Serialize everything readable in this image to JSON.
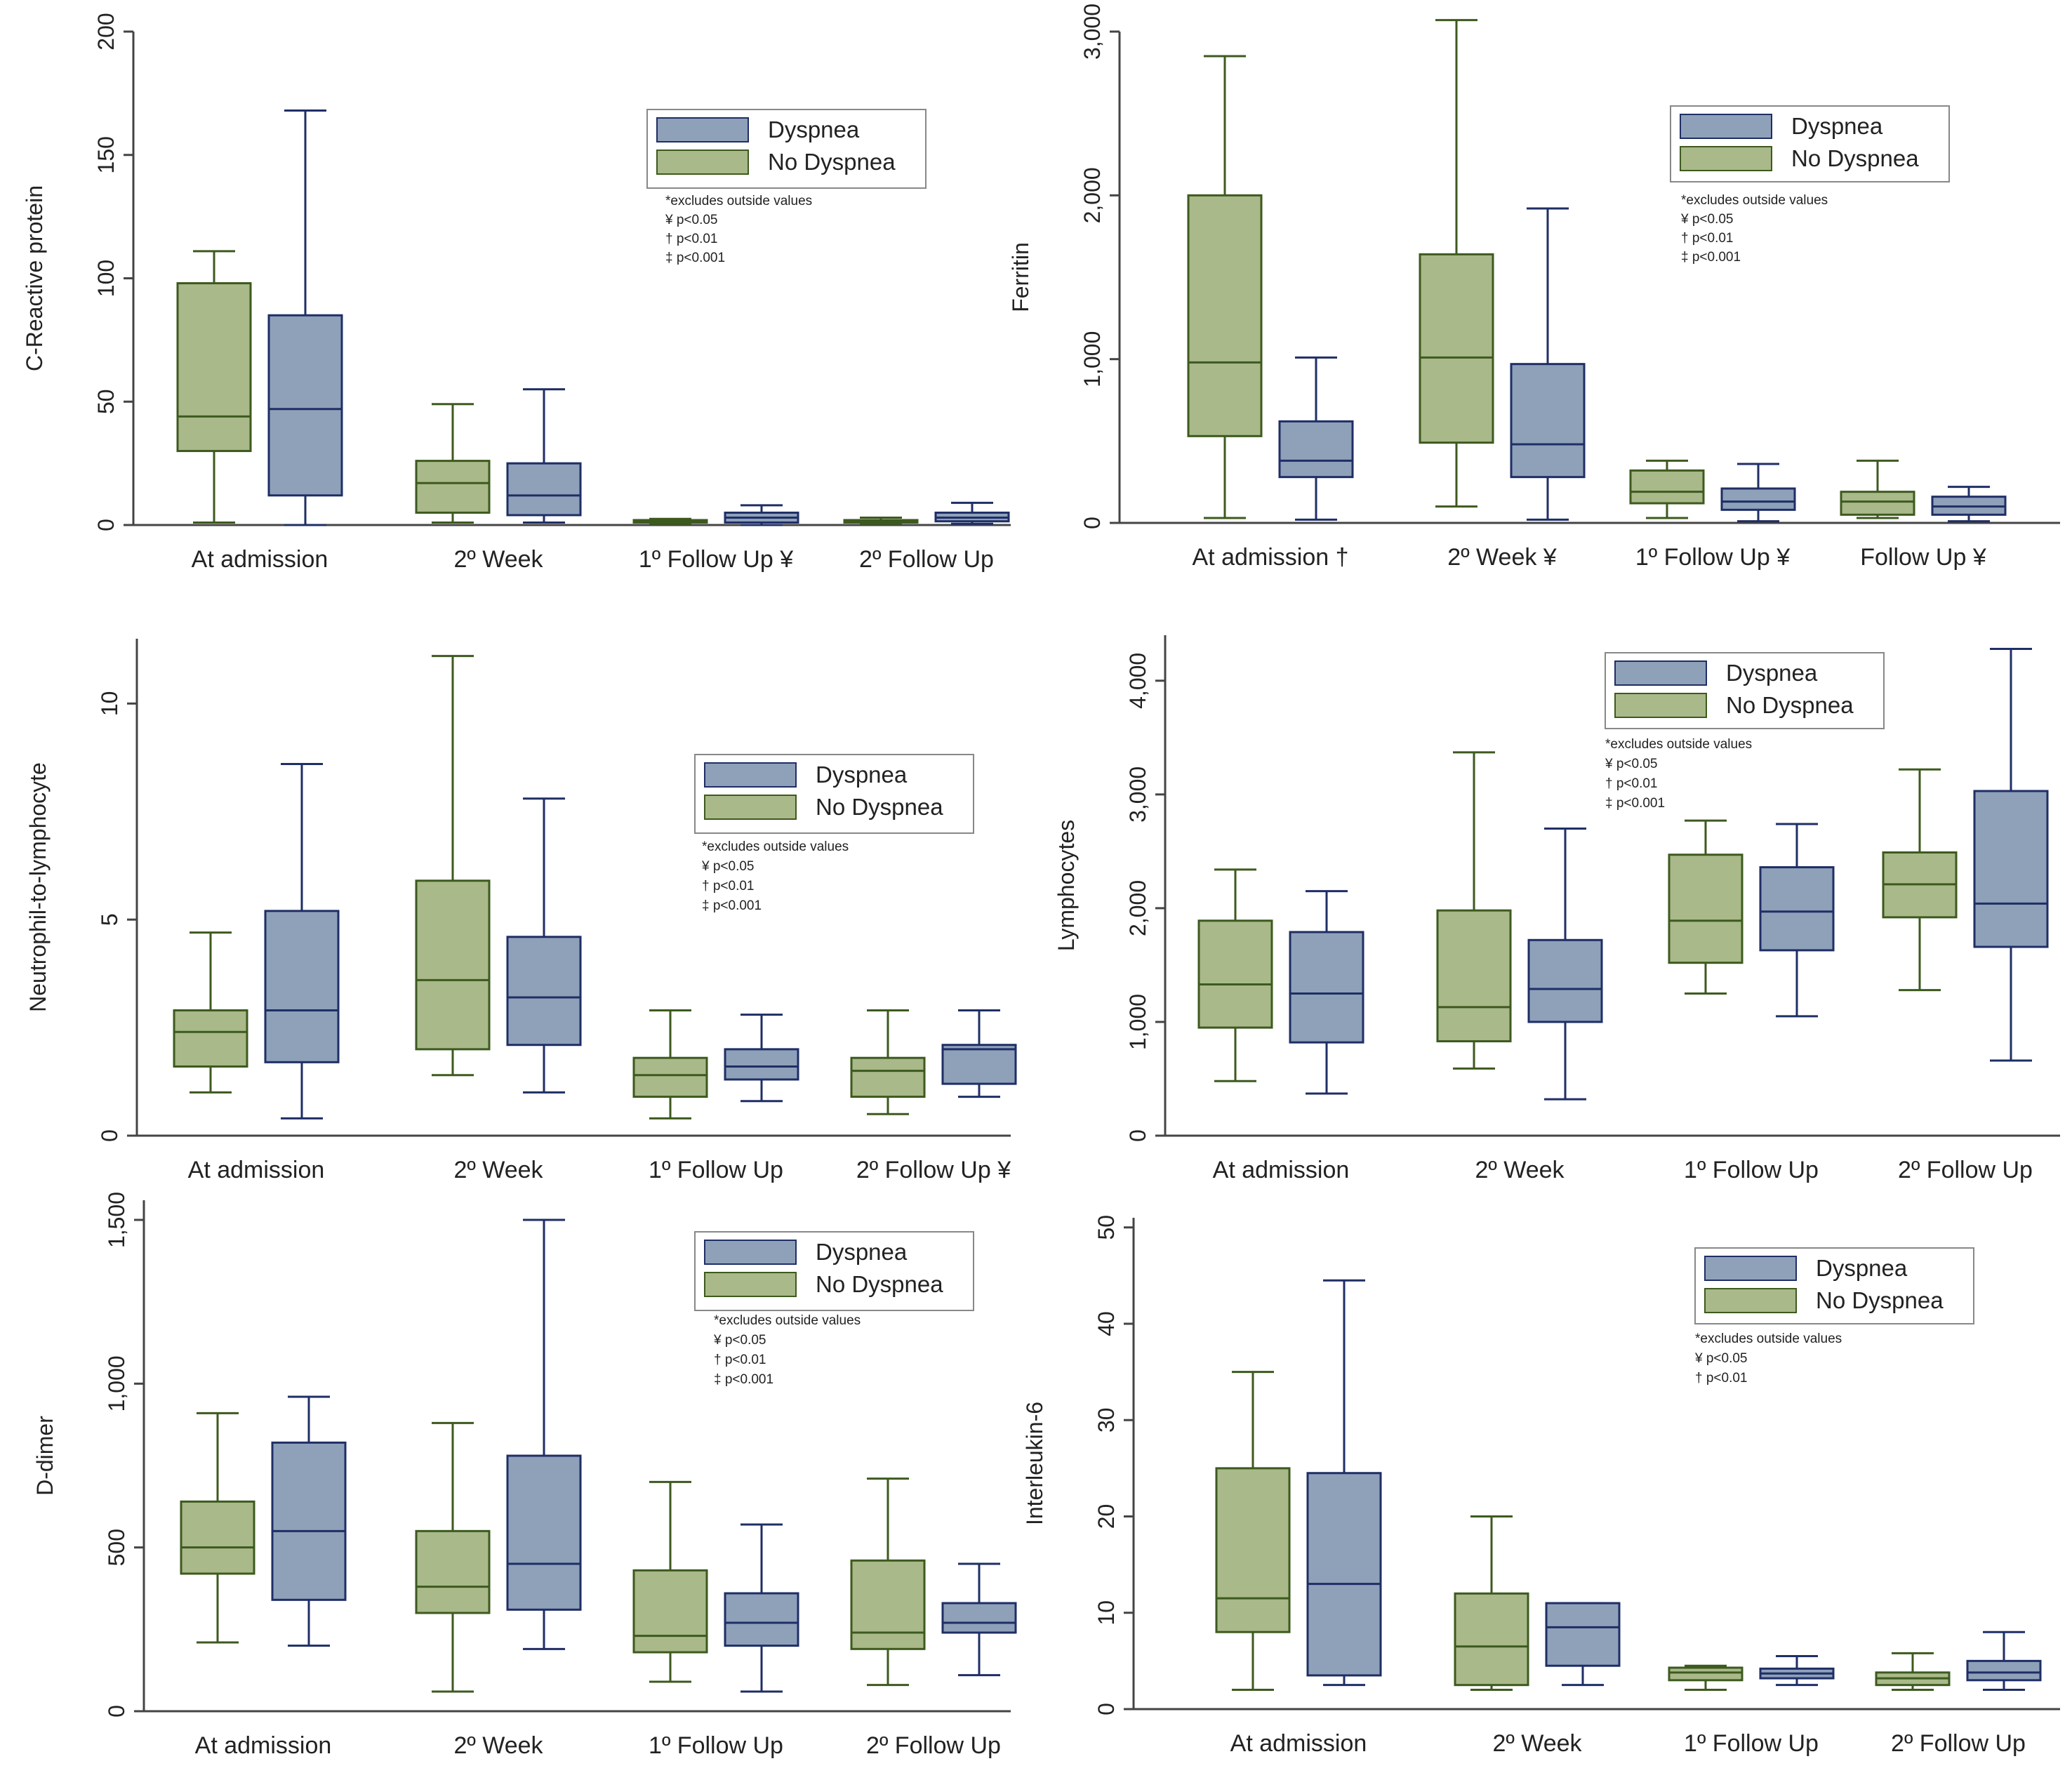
{
  "chart_data": [
    {
      "type": "box",
      "ylabel": "C-Reactive protein",
      "ylim": [
        0,
        200
      ],
      "yticks": [
        0,
        50,
        100,
        150,
        200
      ],
      "yticklabels": [
        "0",
        "50",
        "100",
        "150",
        "200"
      ],
      "legend": {
        "position": "top-right",
        "items": [
          "Dyspnea",
          "No Dyspnea"
        ]
      },
      "notes": [
        "*excludes outside values",
        "¥ p<0.05",
        "† p<0.01",
        "‡ p<0.001"
      ],
      "categories": [
        "At admission",
        "2º Week",
        "1º Follow Up ¥",
        "2º Follow Up"
      ],
      "series": [
        {
          "name": "No Dyspnea",
          "boxes": [
            [
              1,
              30,
              44,
              98,
              111
            ],
            [
              1,
              5,
              17,
              26,
              49
            ],
            [
              0.5,
              1,
              1.5,
              2,
              2.5
            ],
            [
              0.5,
              1,
              1.5,
              2,
              3
            ]
          ]
        },
        {
          "name": "Dyspnea",
          "boxes": [
            [
              0,
              12,
              47,
              85,
              168
            ],
            [
              1,
              4,
              12,
              25,
              55
            ],
            [
              0,
              1,
              3,
              5,
              8
            ],
            [
              0.5,
              1.5,
              3,
              5,
              9
            ]
          ]
        }
      ]
    },
    {
      "type": "box",
      "ylabel": "Ferritin",
      "ylim": [
        0,
        3000
      ],
      "yticks": [
        0,
        1000,
        2000,
        3000
      ],
      "yticklabels": [
        "0",
        "1,000",
        "2,000",
        "3,000"
      ],
      "legend": {
        "position": "top-right",
        "items": [
          "Dyspnea",
          "No Dyspnea"
        ]
      },
      "notes": [
        "*excludes outside values",
        "¥ p<0.05",
        "† p<0.01",
        "‡ p<0.001"
      ],
      "categories": [
        "At admission †",
        "2º Week ¥",
        "1º Follow Up ¥",
        "Follow Up ¥"
      ],
      "series": [
        {
          "name": "No Dyspnea",
          "boxes": [
            [
              30,
              530,
              980,
              2000,
              2850
            ],
            [
              100,
              490,
              1010,
              1640,
              3070
            ],
            [
              30,
              120,
              190,
              320,
              380
            ],
            [
              30,
              50,
              130,
              190,
              380
            ]
          ]
        },
        {
          "name": "Dyspnea",
          "boxes": [
            [
              20,
              280,
              380,
              620,
              1010
            ],
            [
              20,
              280,
              480,
              970,
              1920
            ],
            [
              10,
              80,
              130,
              210,
              360
            ],
            [
              10,
              50,
              100,
              160,
              220
            ]
          ]
        }
      ]
    },
    {
      "type": "box",
      "ylabel": "Neutrophil-to-lymphocyte",
      "ylim": [
        0,
        11.5
      ],
      "yticks": [
        0,
        5,
        10
      ],
      "yticklabels": [
        "0",
        "5",
        "10"
      ],
      "legend": {
        "position": "top-right",
        "items": [
          "Dyspnea",
          "No Dyspnea"
        ]
      },
      "notes": [
        "*excludes outside values",
        "¥ p<0.05",
        "† p<0.01",
        "‡ p<0.001"
      ],
      "categories": [
        "At admission",
        "2º Week",
        "1º Follow Up",
        "2º Follow Up ¥"
      ],
      "series": [
        {
          "name": "No Dyspnea",
          "boxes": [
            [
              1.0,
              1.6,
              2.4,
              2.9,
              4.7
            ],
            [
              1.4,
              2.0,
              3.6,
              5.9,
              11.1
            ],
            [
              0.4,
              0.9,
              1.4,
              1.8,
              2.9
            ],
            [
              0.5,
              0.9,
              1.5,
              1.8,
              2.9
            ]
          ]
        },
        {
          "name": "Dyspnea",
          "boxes": [
            [
              0.4,
              1.7,
              2.9,
              5.2,
              8.6
            ],
            [
              1.0,
              2.1,
              3.2,
              4.6,
              7.8
            ],
            [
              0.8,
              1.3,
              1.6,
              2.0,
              2.8
            ],
            [
              0.9,
              1.2,
              2.0,
              2.1,
              2.9
            ]
          ]
        }
      ]
    },
    {
      "type": "box",
      "ylabel": "Lymphocytes",
      "ylim": [
        0,
        4400
      ],
      "yticks": [
        0,
        1000,
        2000,
        3000,
        4000
      ],
      "yticklabels": [
        "0",
        "1,000",
        "2,000",
        "3,000",
        "4,000"
      ],
      "legend": {
        "position": "top-right",
        "items": [
          "Dyspnea",
          "No Dyspnea"
        ]
      },
      "notes": [
        "*excludes outside values",
        "¥ p<0.05",
        "† p<0.01",
        "‡ p<0.001"
      ],
      "categories": [
        "At admission",
        "2º Week",
        "1º Follow Up",
        "2º Follow Up"
      ],
      "series": [
        {
          "name": "No Dyspnea",
          "boxes": [
            [
              480,
              950,
              1330,
              1890,
              2340
            ],
            [
              590,
              830,
              1130,
              1980,
              3370
            ],
            [
              1250,
              1520,
              1890,
              2470,
              2770
            ],
            [
              1280,
              1920,
              2210,
              2490,
              3220
            ]
          ]
        },
        {
          "name": "Dyspnea",
          "boxes": [
            [
              370,
              820,
              1250,
              1790,
              2150
            ],
            [
              320,
              1000,
              1290,
              1720,
              2700
            ],
            [
              1050,
              1630,
              1970,
              2360,
              2740
            ],
            [
              660,
              1660,
              2040,
              3030,
              4280
            ]
          ]
        }
      ]
    },
    {
      "type": "box",
      "ylabel": "D-dimer",
      "ylim": [
        0,
        1560
      ],
      "yticks": [
        0,
        500,
        1000,
        1500
      ],
      "yticklabels": [
        "0",
        "500",
        "1,000",
        "1,500"
      ],
      "legend": {
        "position": "top-right",
        "items": [
          "Dyspnea",
          "No Dyspnea"
        ]
      },
      "notes": [
        "*excludes outside values",
        "¥ p<0.05",
        "† p<0.01",
        "‡ p<0.001"
      ],
      "categories": [
        "At admission",
        "2º Week",
        "1º Follow Up",
        "2º Follow Up"
      ],
      "series": [
        {
          "name": "No Dyspnea",
          "boxes": [
            [
              210,
              420,
              500,
              640,
              910
            ],
            [
              60,
              300,
              380,
              550,
              880
            ],
            [
              90,
              180,
              230,
              430,
              700
            ],
            [
              80,
              190,
              240,
              460,
              710
            ]
          ]
        },
        {
          "name": "Dyspnea",
          "boxes": [
            [
              200,
              340,
              550,
              820,
              960
            ],
            [
              190,
              310,
              450,
              780,
              1500
            ],
            [
              60,
              200,
              270,
              360,
              570
            ],
            [
              110,
              240,
              270,
              330,
              450
            ]
          ]
        }
      ]
    },
    {
      "type": "box",
      "ylabel": "Interleukin-6",
      "ylim": [
        0,
        51
      ],
      "yticks": [
        0,
        10,
        20,
        30,
        40,
        50
      ],
      "yticklabels": [
        "0",
        "10",
        "20",
        "30",
        "40",
        "50"
      ],
      "legend": {
        "position": "top-right",
        "items": [
          "Dyspnea",
          "No Dyspnea"
        ]
      },
      "notes": [
        "*excludes outside values",
        "¥ p<0.05",
        "† p<0.01"
      ],
      "categories": [
        "At admission",
        "2º Week",
        "1º Follow Up",
        "2º Follow Up"
      ],
      "series": [
        {
          "name": "No Dyspnea",
          "boxes": [
            [
              2,
              8,
              11.5,
              25,
              35
            ],
            [
              2,
              2.5,
              6.5,
              12,
              20
            ],
            [
              2,
              3,
              3.8,
              4.3,
              4.5
            ],
            [
              2,
              2.5,
              3.2,
              3.8,
              5.8
            ]
          ]
        },
        {
          "name": "Dyspnea",
          "boxes": [
            [
              2.5,
              3.5,
              13,
              24.5,
              44.5
            ],
            [
              2.5,
              4.5,
              8.5,
              11,
              11
            ],
            [
              2.5,
              3.2,
              3.7,
              4.2,
              5.5
            ],
            [
              2,
              3,
              3.8,
              5,
              8
            ]
          ]
        }
      ]
    }
  ],
  "colors": {
    "no_dyspnea_fill": "#a9b98a",
    "no_dyspnea_stroke": "#3d5a1e",
    "dyspnea_fill": "#8ea1b9",
    "dyspnea_stroke": "#1f2e66",
    "axis": "#444444",
    "legend_border": "#888888"
  }
}
